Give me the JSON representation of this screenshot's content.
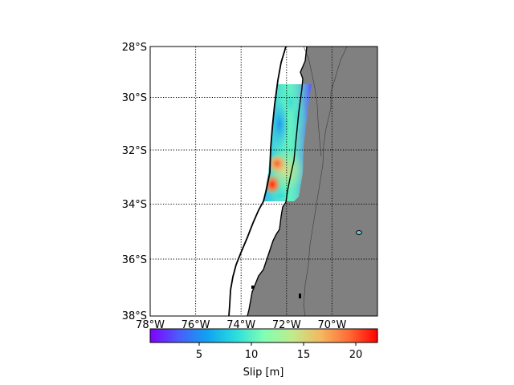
{
  "map": {
    "lon_range": [
      -78,
      -68
    ],
    "lat_range": [
      -38,
      -28
    ],
    "lon_ticks": [
      {
        "value": -78,
        "label": "78°W"
      },
      {
        "value": -76,
        "label": "76°W"
      },
      {
        "value": -74,
        "label": "74°W"
      },
      {
        "value": -72,
        "label": "72°W"
      },
      {
        "value": -70,
        "label": "70°W"
      }
    ],
    "lat_ticks": [
      {
        "value": -28,
        "label": "28°S"
      },
      {
        "value": -30,
        "label": "30°S"
      },
      {
        "value": -32,
        "label": "32°S"
      },
      {
        "value": -34,
        "label": "34°S"
      },
      {
        "value": -36,
        "label": "36°S"
      },
      {
        "value": -38,
        "label": "38°S"
      }
    ],
    "grid": "dotted",
    "land_color": "#808080",
    "slip_patches": [
      {
        "lon": -72.55,
        "lat": -33.3,
        "slip": 21
      },
      {
        "lon": -72.4,
        "lat": -32.55,
        "slip": 19
      },
      {
        "lon": -71.9,
        "lat": -32.9,
        "slip": 15
      },
      {
        "lon": -72.6,
        "lat": -31.2,
        "slip": 5
      },
      {
        "lon": -71.4,
        "lat": -30.5,
        "slip": 8
      }
    ]
  },
  "colorbar": {
    "label": "Slip [m]",
    "range": [
      0.3,
      22
    ],
    "ticks": [
      {
        "value": 5,
        "label": "5"
      },
      {
        "value": 10,
        "label": "10"
      },
      {
        "value": 15,
        "label": "15"
      },
      {
        "value": 20,
        "label": "20"
      }
    ],
    "colormap": "rainbow"
  }
}
